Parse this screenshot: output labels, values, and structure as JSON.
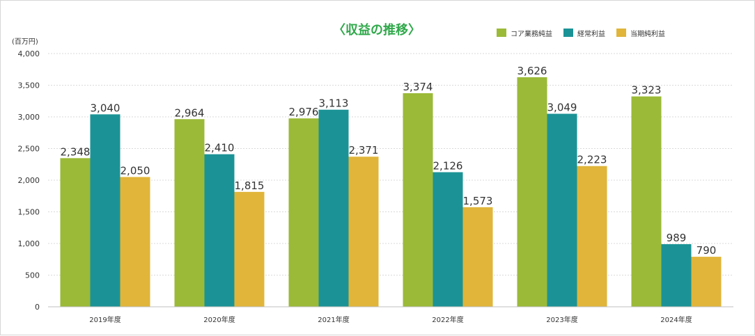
{
  "chart_data": {
    "type": "bar",
    "title": "〈収益の推移〉",
    "unit_label": "(百万円)",
    "categories": [
      "2019年度",
      "2020年度",
      "2021年度",
      "2022年度",
      "2023年度",
      "2024年度"
    ],
    "series": [
      {
        "name": "コア業務純益",
        "color": "#9bba38",
        "values": [
          2348,
          2964,
          2976,
          3374,
          3626,
          3323
        ],
        "labels": [
          "2,348",
          "2,964",
          "2,976",
          "3,374",
          "3,626",
          "3,323"
        ]
      },
      {
        "name": "経常利益",
        "color": "#1b9396",
        "values": [
          3040,
          2410,
          3113,
          2126,
          3049,
          989
        ],
        "labels": [
          "3,040",
          "2,410",
          "3,113",
          "2,126",
          "3,049",
          "989"
        ]
      },
      {
        "name": "当期純利益",
        "color": "#e0b53a",
        "values": [
          2050,
          1815,
          2371,
          1573,
          2223,
          790
        ],
        "labels": [
          "2,050",
          "1,815",
          "2,371",
          "1,573",
          "2,223",
          "790"
        ]
      }
    ],
    "yticks": [
      0,
      500,
      1000,
      1500,
      2000,
      2500,
      3000,
      3500,
      4000
    ],
    "ytick_labels": [
      "0",
      "500",
      "1,000",
      "1,500",
      "2,000",
      "2,500",
      "3,000",
      "3,500",
      "4,000"
    ],
    "ylim": [
      0,
      4000
    ],
    "grid": true,
    "legend_position": "top-right"
  }
}
